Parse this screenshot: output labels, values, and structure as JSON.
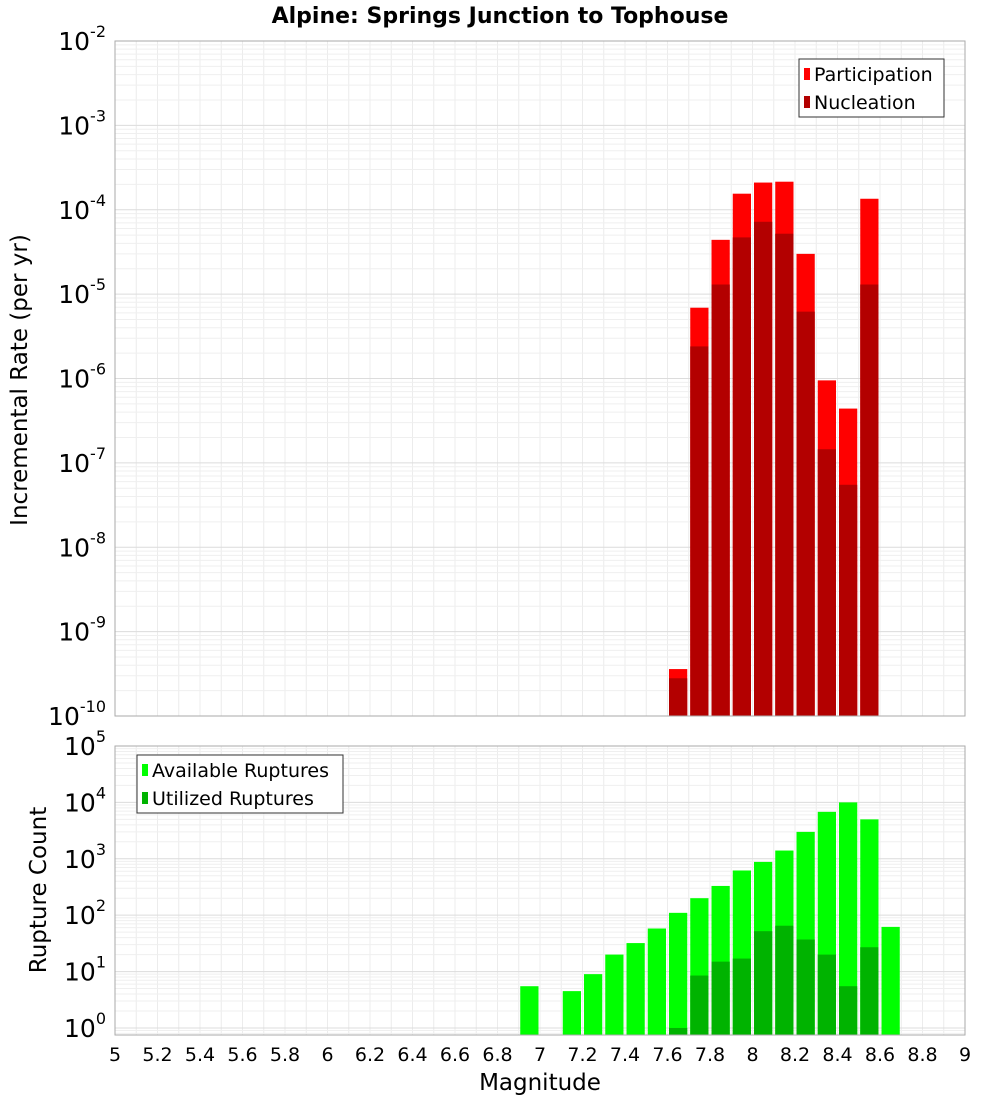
{
  "title": "Alpine: Springs Junction to Tophouse",
  "chart_data": [
    {
      "type": "bar",
      "ylabel": "Incremental Rate (per yr)",
      "yscale": "log",
      "ylim": [
        1e-10,
        0.01
      ],
      "xlim": [
        5,
        9
      ],
      "bin_width": 0.1,
      "grid": true,
      "legend_position": "top-right",
      "y_tick_exponents": [
        "-10",
        "-9",
        "-8",
        "-7",
        "-6",
        "-5",
        "-4",
        "-3",
        "-2"
      ],
      "x": [
        7.65,
        7.75,
        7.85,
        7.95,
        8.05,
        8.15,
        8.25,
        8.35,
        8.45,
        8.55
      ],
      "series": [
        {
          "name": "Participation",
          "color": "#ff0000",
          "values": [
            3.6e-10,
            6.9e-06,
            4.4e-05,
            0.000155,
            0.00021,
            0.000215,
            3e-05,
            9.5e-07,
            4.4e-07,
            0.000135
          ]
        },
        {
          "name": "Nucleation",
          "color": "#b30000",
          "values": [
            2.8e-10,
            2.4e-06,
            1.3e-05,
            4.7e-05,
            7.2e-05,
            5.2e-05,
            6.2e-06,
            1.45e-07,
            5.5e-08,
            1.3e-05
          ]
        }
      ]
    },
    {
      "type": "bar",
      "ylabel": "Rupture Count",
      "xlabel": "Magnitude",
      "yscale": "log",
      "ylim": [
        0.75,
        100000
      ],
      "xlim": [
        5,
        9
      ],
      "bin_width": 0.1,
      "grid": true,
      "legend_position": "top-left",
      "y_tick_exponents": [
        "0",
        "1",
        "2",
        "3",
        "4",
        "5"
      ],
      "x_ticks": [
        "5",
        "5.2",
        "5.4",
        "5.6",
        "5.8",
        "6",
        "6.2",
        "6.4",
        "6.6",
        "6.8",
        "7",
        "7.2",
        "7.4",
        "7.6",
        "7.8",
        "8",
        "8.2",
        "8.4",
        "8.6",
        "8.8",
        "9"
      ],
      "x": [
        6.95,
        7.15,
        7.25,
        7.35,
        7.45,
        7.55,
        7.65,
        7.75,
        7.85,
        7.95,
        8.05,
        8.15,
        8.25,
        8.35,
        8.45,
        8.55,
        8.65
      ],
      "series": [
        {
          "name": "Available Ruptures",
          "color": "#00ff00",
          "values": [
            5.5,
            4.5,
            9,
            20,
            32,
            58,
            110,
            200,
            330,
            620,
            880,
            1400,
            3000,
            6800,
            10000,
            5000,
            62
          ]
        },
        {
          "name": "Utilized Ruptures",
          "color": "#00b300",
          "values": [
            0,
            0,
            0,
            0,
            0,
            0,
            1,
            8.5,
            15,
            17,
            52,
            65,
            37,
            20,
            5.5,
            27,
            0
          ]
        }
      ]
    }
  ]
}
